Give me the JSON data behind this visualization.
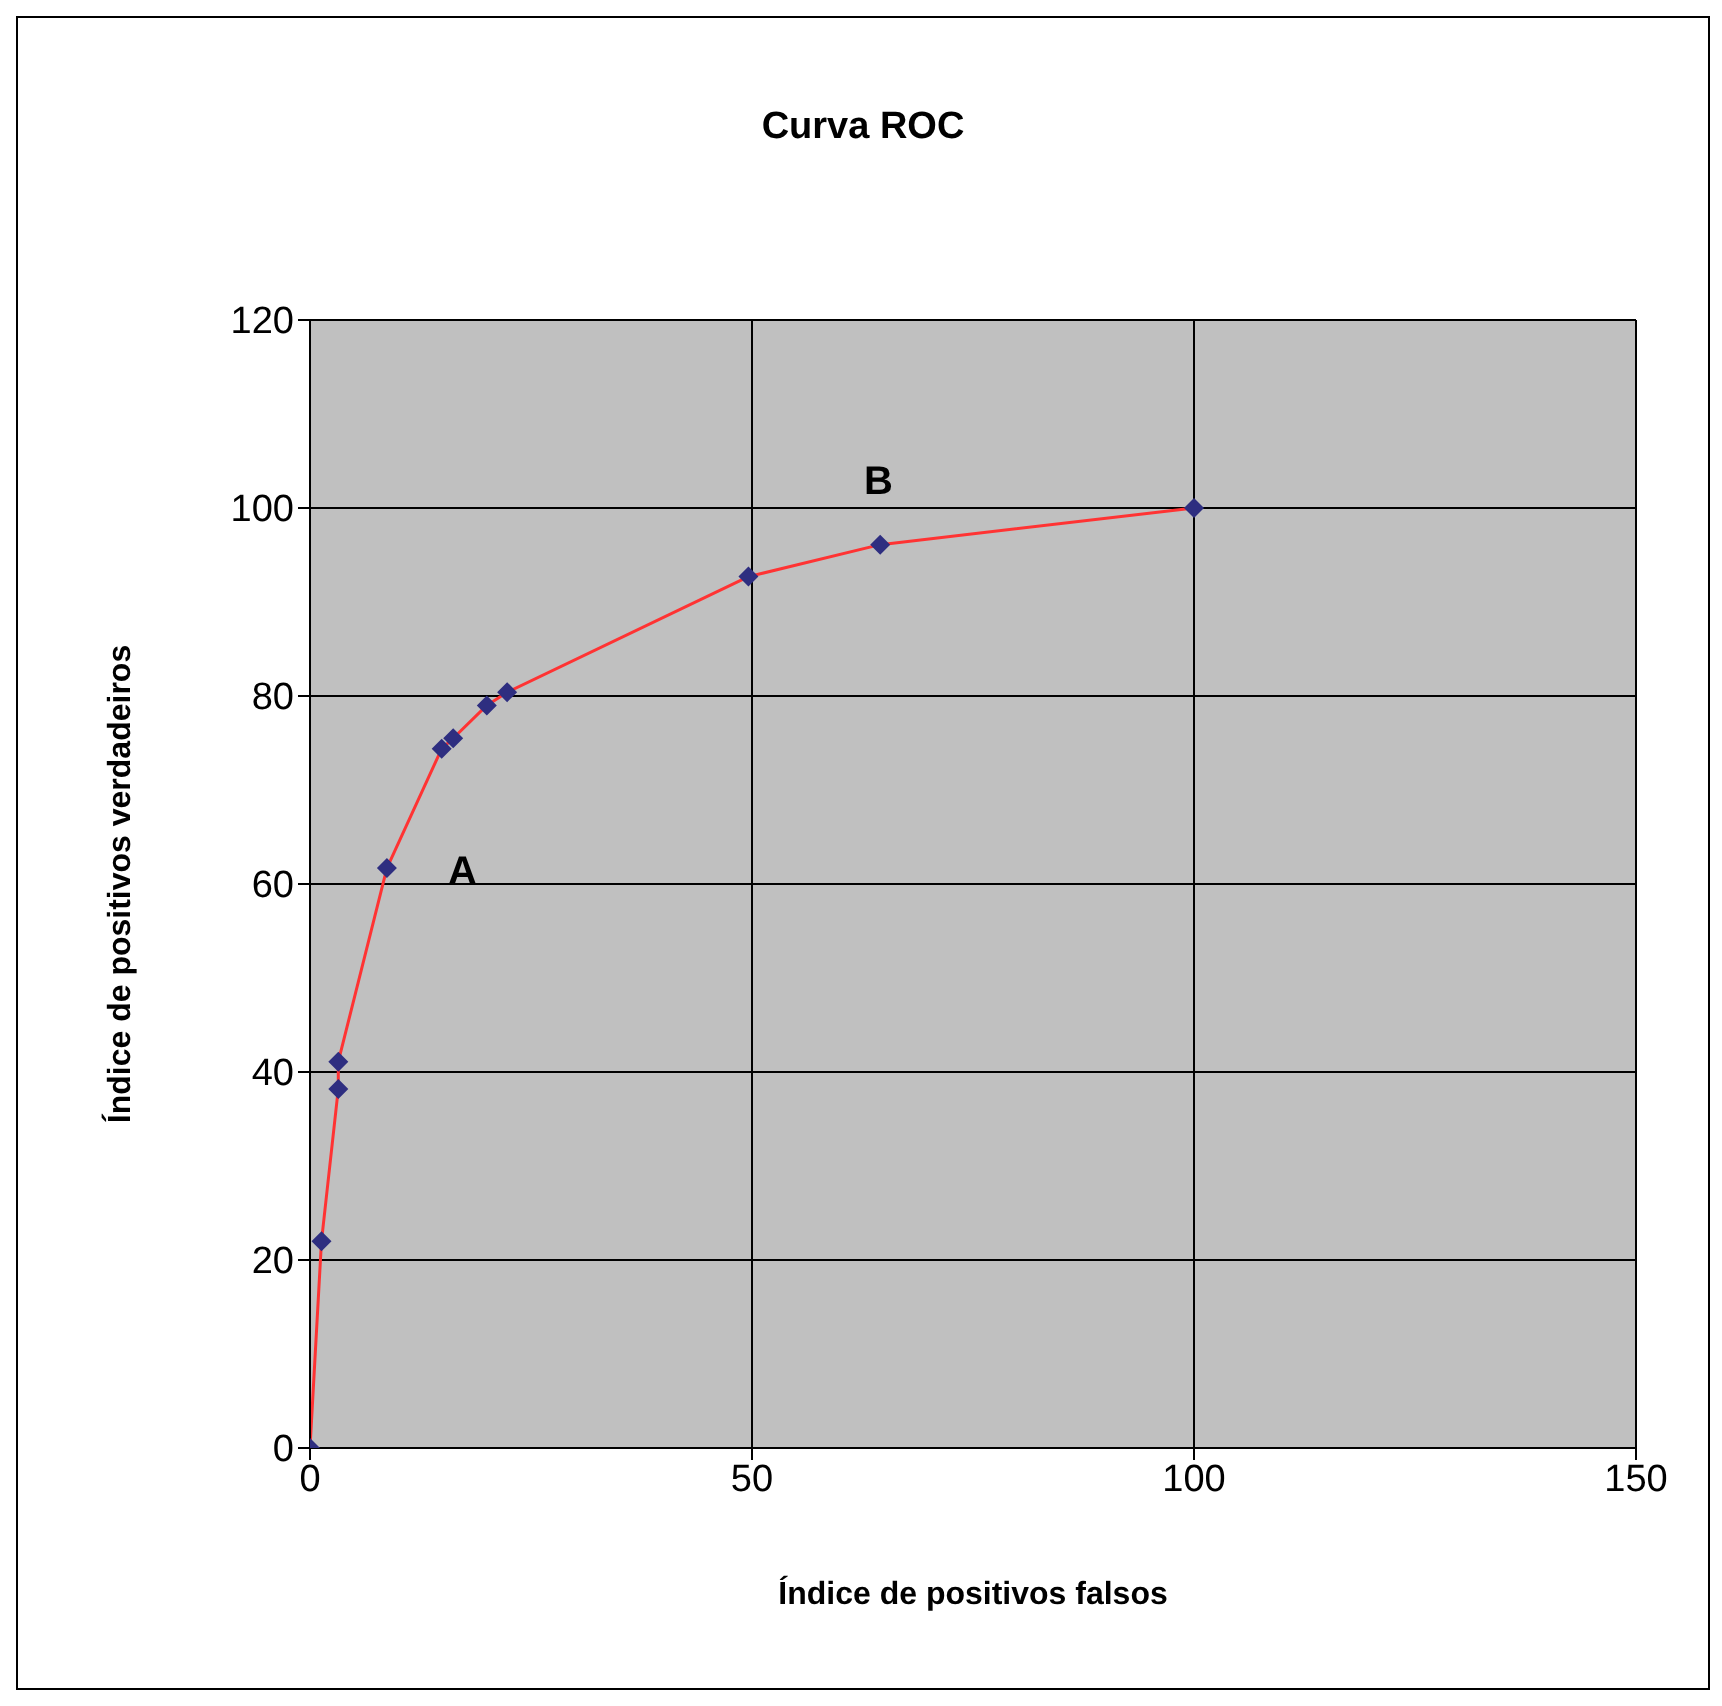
{
  "chart_data": {
    "type": "line",
    "title": "Curva ROC",
    "xlabel": "Índice de positivos  falsos",
    "ylabel": "Índice de positivos  verdadeiros",
    "x": [
      0,
      1.3,
      3.2,
      3.2,
      8.7,
      14.9,
      16.2,
      20.0,
      22.3,
      49.6,
      64.5,
      100
    ],
    "series": [
      {
        "color": "#ff3333",
        "values": [
          0,
          22,
          38.2,
          41.1,
          61.7,
          74.4,
          75.5,
          79,
          80.4,
          92.7,
          96.1,
          100
        ]
      }
    ],
    "marker": "diamond",
    "xlim": [
      0,
      150
    ],
    "xticks": [
      0,
      50,
      100,
      150
    ],
    "ylim": [
      0,
      120
    ],
    "yticks": [
      0,
      20,
      40,
      60,
      80,
      100,
      120
    ],
    "grid": true,
    "annotations": [
      "A",
      "B"
    ]
  }
}
